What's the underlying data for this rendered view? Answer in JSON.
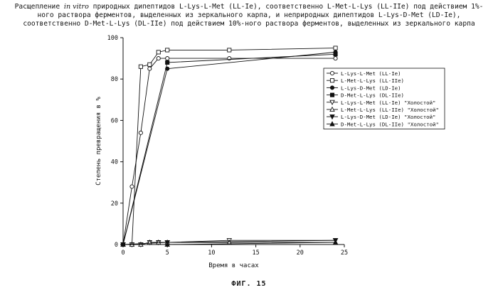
{
  "title": {
    "line1_a": "Расщепление ",
    "line1_italic": "in vitro",
    "line1_b": " природных дипептидов L-Lys-L-Met (LL-Ie), соответственно L-Met-L-Lys (LL-IIe) под действием 1%-",
    "line2": "ного раствора ферментов, выделенных из зеркального карпа, и неприродных дипептидов L-Lys-D-Met (LD-Ie),",
    "line3": "соответственно D-Met-L-Lys (DL-IIe) под действием 10%-ного раствора ферментов, выделенных из зеркального карпа"
  },
  "figure_label": "ФИГ. 15",
  "chart_data": {
    "type": "line",
    "xlabel": "Время в часах",
    "ylabel": "Степень превращения в %",
    "xlim": [
      0,
      25
    ],
    "ylim": [
      0,
      100
    ],
    "xticks": [
      0,
      5,
      10,
      15,
      20,
      25
    ],
    "yticks": [
      0,
      20,
      40,
      60,
      80,
      100
    ],
    "legend_position": "right",
    "grid": false,
    "series": [
      {
        "name": "L-Lys-L-Met (LL-Ie)",
        "marker": "circle-open",
        "x": [
          0,
          1,
          2,
          3,
          4,
          5,
          12,
          24
        ],
        "y": [
          0,
          28,
          54,
          85,
          90,
          90,
          90,
          90
        ]
      },
      {
        "name": "L-Met-L-Lys (LL-IIe)",
        "marker": "square-open",
        "x": [
          0,
          1,
          2,
          3,
          4,
          5,
          12,
          24
        ],
        "y": [
          0,
          0,
          86,
          87,
          93,
          94,
          94,
          95
        ]
      },
      {
        "name": "L-Lys-D-Met (LD-Ie)",
        "marker": "circle-filled",
        "x": [
          0,
          5,
          24
        ],
        "y": [
          0,
          85,
          93
        ]
      },
      {
        "name": "D-Met-L-Lys (DL-IIe)",
        "marker": "square-filled",
        "x": [
          0,
          5,
          24
        ],
        "y": [
          0,
          88,
          92
        ]
      },
      {
        "name": "L-Lys-L-Met (LL-Ie) \"Холостой\"",
        "marker": "triangle-down-open",
        "x": [
          0,
          1,
          2,
          3,
          4,
          5,
          12,
          24
        ],
        "y": [
          0,
          0,
          0,
          1,
          1,
          1,
          2,
          2
        ]
      },
      {
        "name": "L-Met-L-Lys (LL-IIe) \"Холостой\"",
        "marker": "triangle-up-open",
        "x": [
          0,
          1,
          2,
          3,
          4,
          5,
          12,
          24
        ],
        "y": [
          0,
          0,
          0,
          1,
          1,
          1,
          1,
          1
        ]
      },
      {
        "name": "L-Lys-D-Met (LD-Ie) \"Холостой\"",
        "marker": "triangle-down-filled",
        "x": [
          0,
          5,
          24
        ],
        "y": [
          0,
          1,
          2
        ]
      },
      {
        "name": "D-Met-L-Lys (DL-IIe) \"Холостой\"",
        "marker": "triangle-up-filled",
        "x": [
          0,
          5,
          24
        ],
        "y": [
          0,
          0,
          1
        ]
      }
    ]
  }
}
